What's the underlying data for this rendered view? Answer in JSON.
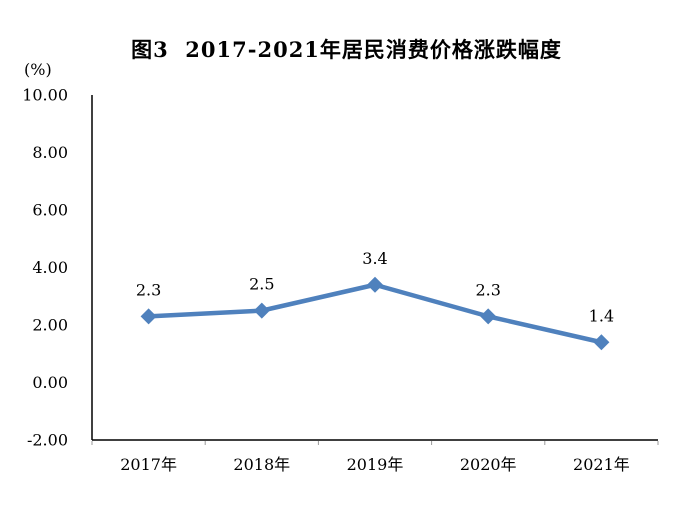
{
  "title": "图3  2017-2021年居民消费价格涨跌幅度",
  "y_axis_unit_label": "(%)",
  "chart_data": {
    "type": "line",
    "title": "图3  2017-2021年居民消费价格涨跌幅度",
    "categories": [
      "2017年",
      "2018年",
      "2019年",
      "2020年",
      "2021年"
    ],
    "series": [
      {
        "name": "居民消费价格涨跌幅度",
        "values": [
          2.3,
          2.5,
          3.4,
          2.3,
          1.4
        ]
      }
    ],
    "data_labels": [
      "2.3",
      "2.5",
      "3.4",
      "2.3",
      "1.4"
    ],
    "xlabel": "",
    "ylabel": "(%)",
    "ylim": [
      -2,
      10
    ],
    "ytick_step": 2,
    "yticks": [
      "10.00",
      "8.00",
      "6.00",
      "4.00",
      "2.00",
      "0.00",
      "-2.00"
    ],
    "grid": false,
    "legend": "none",
    "line_color": "#4F81BD",
    "marker": "diamond",
    "axis_color": "#000000",
    "minor_tick_color": "#999999"
  }
}
